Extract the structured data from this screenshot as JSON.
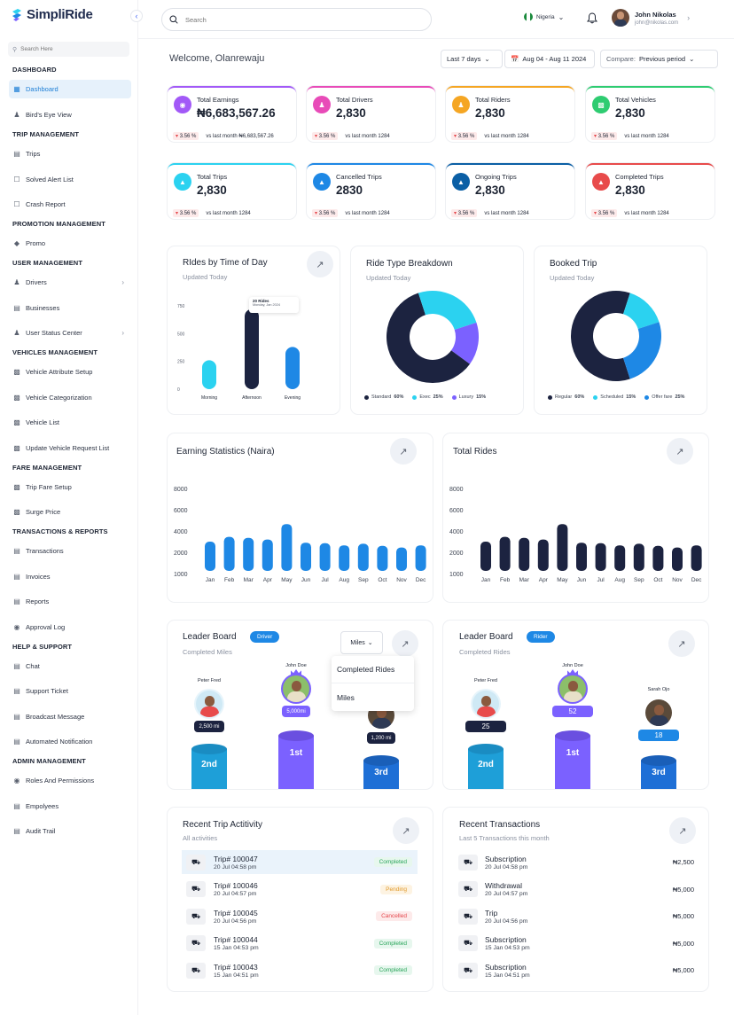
{
  "app": {
    "name": "SimpliRide"
  },
  "sidebar": {
    "search_placeholder": "Search Here",
    "sections": {
      "dashboard": "DASHBOARD",
      "trip": "TRIP MANAGEMENT",
      "promotion": "PROMOTION MANAGEMENT",
      "user": "USER MANAGEMENT",
      "vehicles": "VEHICLES MANAGEMENT",
      "fare": "FARE MANAGEMENT",
      "transactions": "TRANSACTIONS & REPORTS",
      "help": "HELP & SUPPORT",
      "admin": "ADMIN MANAGEMENT"
    },
    "items": [
      "Dashboard",
      "Bird's Eye View",
      "Trips",
      "Solved Alert List",
      "Crash Report",
      "Promo",
      "Drivers",
      "Businesses",
      "User Status Center",
      "Vehicle Attribute Setup",
      "Vehicle Categorization",
      "Vehicle List",
      "Update Vehicle Request List",
      "Trip Fare Setup",
      "Surge Price",
      "Transactions",
      "Invoices",
      "Reports",
      "Approval Log",
      "Chat",
      "Support Ticket",
      "Broadcast Message",
      "Automated Notification",
      "Roles And Permissions",
      "Empolyees",
      "Audit Trail"
    ]
  },
  "topbar": {
    "search_placeholder": "Search",
    "country": "Nigeria",
    "user_name": "John Nikolas",
    "user_email": "john@nikolas.com"
  },
  "header": {
    "welcome": "Welcome, Olanrewaju",
    "range": "Last 7 days",
    "dates": "Aug 04 - Aug 11 2024",
    "compare_label": "Compare:",
    "compare_value": "Previous period"
  },
  "stats": [
    {
      "label": "Total Earnings",
      "value": "₦6,683,567.26",
      "change": "3.56 %",
      "vs": "vs last month ₦6,683,567.26",
      "color": "#a259f7"
    },
    {
      "label": "Total Drivers",
      "value": "2,830",
      "change": "3.56 %",
      "vs": "vs last month 1284",
      "color": "#e84bb8"
    },
    {
      "label": "Total Riders",
      "value": "2,830",
      "change": "3.56 %",
      "vs": "vs last month 1284",
      "color": "#f5a623"
    },
    {
      "label": "Total Vehicles",
      "value": "2,830",
      "change": "3.56 %",
      "vs": "vs last month 1284",
      "color": "#2ecc71"
    },
    {
      "label": "Total Trips",
      "value": "2,830",
      "change": "3.56 %",
      "vs": "vs last month 1284",
      "color": "#2bd2f0"
    },
    {
      "label": "Cancelled Trips",
      "value": "2830",
      "change": "3.56 %",
      "vs": "vs last month 1284",
      "color": "#1e88e5"
    },
    {
      "label": "Ongoing Trips",
      "value": "2,830",
      "change": "3.56 %",
      "vs": "vs last month 1284",
      "color": "#0b5fa5"
    },
    {
      "label": "Completed Trips",
      "value": "2,830",
      "change": "3.56 %",
      "vs": "vs last month 1284",
      "color": "#e84b4b"
    }
  ],
  "rides_time": {
    "title": "RIdes by Time of Day",
    "subtitle": "Updated Today",
    "tooltip_value": "20 Rides",
    "tooltip_date": "Monday, Jan 2024"
  },
  "ride_type": {
    "title": "Ride Type Breakdown",
    "subtitle": "Updated Today",
    "legend": [
      {
        "name": "Standard",
        "pct": "60%",
        "color": "#1c2340"
      },
      {
        "name": "Exec",
        "pct": "25%",
        "color": "#2bd2f0"
      },
      {
        "name": "Luxury",
        "pct": "15%",
        "color": "#7b61ff"
      }
    ]
  },
  "booked": {
    "title": "Booked Trip",
    "subtitle": "Updated Today",
    "legend": [
      {
        "name": "Regular",
        "pct": "60%",
        "color": "#1c2340"
      },
      {
        "name": "Scheduled",
        "pct": "15%",
        "color": "#2bd2f0"
      },
      {
        "name": "Offer fare",
        "pct": "25%",
        "color": "#1e88e5"
      }
    ]
  },
  "earning": {
    "title": "Earning Statistics (Naira)"
  },
  "totalrides": {
    "title": "Total Rides"
  },
  "leader_driver": {
    "title": "Leader Board",
    "badge": "Driver",
    "subtitle": "Completed Miles",
    "filter": "Miles",
    "menu": [
      "Completed Rides",
      "Miles"
    ],
    "people": [
      {
        "name": "Peter Fred",
        "score": "2,500 mi",
        "rank": "2nd"
      },
      {
        "name": "John Doe",
        "score": "5,000mi",
        "rank": "1st"
      },
      {
        "name": "",
        "score": "1,200 mi",
        "rank": "3rd"
      }
    ]
  },
  "leader_rider": {
    "title": "Leader Board",
    "badge": "Rider",
    "subtitle": "Completed Rides",
    "people": [
      {
        "name": "Peter Fred",
        "score": "25",
        "rank": "2nd"
      },
      {
        "name": "John Doe",
        "score": "52",
        "rank": "1st"
      },
      {
        "name": "Sarah Ojo",
        "score": "18",
        "rank": "3rd"
      }
    ]
  },
  "activity": {
    "title": "Recent Trip Actitivity",
    "subtitle": "All activities",
    "rows": [
      {
        "trip": "Trip# 100047",
        "date": "20 Jul 04:58 pm",
        "status": "Completed"
      },
      {
        "trip": "Trip# 100046",
        "date": "20 Jul 04:57 pm",
        "status": "Pending"
      },
      {
        "trip": "Trip# 100045",
        "date": "20 Jul 04:56 pm",
        "status": "Cancelled"
      },
      {
        "trip": "Trip# 100044",
        "date": "15 Jan 04:53 pm",
        "status": "Completed"
      },
      {
        "trip": "Trip# 100043",
        "date": "15 Jan 04:51 pm",
        "status": "Completed"
      }
    ]
  },
  "transactions": {
    "title": "Recent Transactions",
    "subtitle": "Last 5 Transactions this month",
    "rows": [
      {
        "type": "Subscription",
        "date": "20 Jul 04:58 pm",
        "amount": "₦2,500"
      },
      {
        "type": "Withdrawal",
        "date": "20 Jul 04:57 pm",
        "amount": "₦5,000"
      },
      {
        "type": "Trip",
        "date": "20 Jul 04:56 pm",
        "amount": "₦5,000"
      },
      {
        "type": "Subscription",
        "date": "15 Jan 04:53 pm",
        "amount": "₦5,000"
      },
      {
        "type": "Subscription",
        "date": "15 Jan 04:51 pm",
        "amount": "₦5,000"
      }
    ]
  },
  "chart_data": [
    {
      "type": "bar",
      "categories": [
        "Morning",
        "Afternoon",
        "Evening"
      ],
      "values": [
        260,
        720,
        380
      ],
      "yticks": [
        "750",
        "500",
        "250",
        "0"
      ],
      "ylim": [
        0,
        750
      ]
    },
    {
      "type": "pie",
      "labels": [
        "Standard",
        "Exec",
        "Luxury"
      ],
      "values": [
        60,
        25,
        15
      ]
    },
    {
      "type": "pie",
      "labels": [
        "Regular",
        "Scheduled",
        "Offer fare"
      ],
      "values": [
        60,
        15,
        25
      ]
    },
    {
      "type": "bar",
      "categories": [
        "Jan",
        "Feb",
        "Mar",
        "Apr",
        "May",
        "Jun",
        "Jul",
        "Aug",
        "Sep",
        "Oct",
        "Nov",
        "Dec"
      ],
      "values": [
        4000,
        4450,
        4350,
        4200,
        5650,
        3900,
        3850,
        3650,
        3800,
        3600,
        3450,
        3650
      ],
      "yticks": [
        "8000",
        "6000",
        "4000",
        "2000",
        "1000"
      ],
      "ylim": [
        0,
        8000
      ]
    },
    {
      "type": "bar",
      "categories": [
        "Jan",
        "Feb",
        "Mar",
        "Apr",
        "May",
        "Jun",
        "Jul",
        "Aug",
        "Sep",
        "Oct",
        "Nov",
        "Dec"
      ],
      "values": [
        4000,
        4450,
        4350,
        4200,
        5650,
        3900,
        3850,
        3650,
        3800,
        3600,
        3450,
        3650
      ],
      "yticks": [
        "8000",
        "6000",
        "4000",
        "2000",
        "1000"
      ],
      "ylim": [
        0,
        8000
      ]
    }
  ]
}
